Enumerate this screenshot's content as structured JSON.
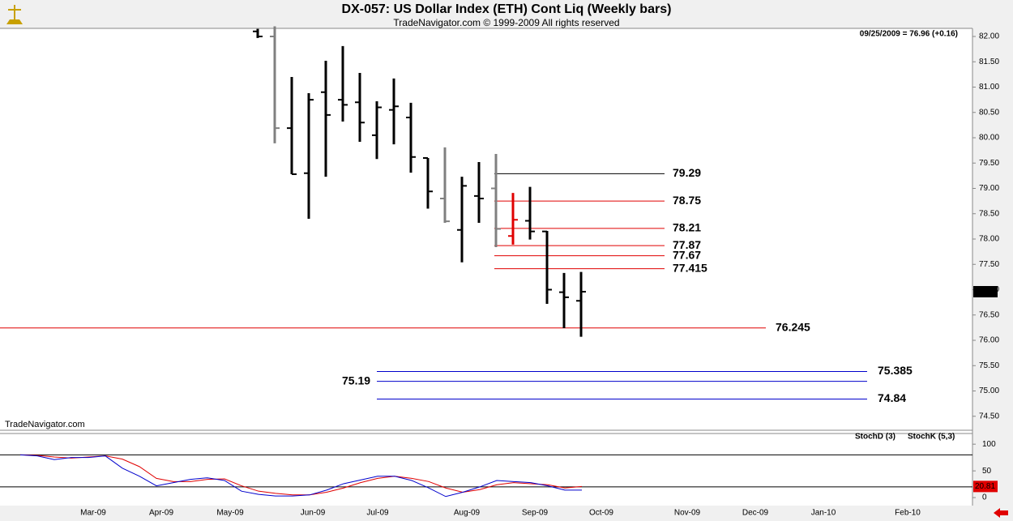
{
  "chart_data": [
    {
      "type": "ohlc",
      "title": "DX-057:  US Dollar Index (ETH) Cont Liq  (Weekly bars)",
      "subtitle": "TradeNavigator.com © 1999-2009 All rights reserved",
      "info": "09/25/2009 = 76.96 (+0.16)",
      "watermark": "TradeNavigator.com",
      "open": [
        82.1,
        82.0,
        80.19,
        79.3,
        80.9,
        80.75,
        80.7,
        80.05,
        80.55,
        80.4,
        79.6,
        78.8,
        78.18,
        78.85,
        79.0,
        78.06,
        78.36,
        78.15,
        76.95,
        76.78
      ],
      "high": [
        82.15,
        82.2,
        81.2,
        80.88,
        81.52,
        81.81,
        81.28,
        80.72,
        81.17,
        80.69,
        79.6,
        79.81,
        79.23,
        79.52,
        79.68,
        78.91,
        79.03,
        78.16,
        77.33,
        77.35
      ],
      "low": [
        81.97,
        79.89,
        79.28,
        78.4,
        79.23,
        80.32,
        79.92,
        79.58,
        79.87,
        79.31,
        78.6,
        78.32,
        77.54,
        78.32,
        77.84,
        77.89,
        77.99,
        76.72,
        76.24,
        76.07
      ],
      "close": [
        82.0,
        80.19,
        79.28,
        80.75,
        80.45,
        80.65,
        80.3,
        80.6,
        80.62,
        79.62,
        78.94,
        78.35,
        79.05,
        78.8,
        78.2,
        78.38,
        78.15,
        77.0,
        76.85,
        76.96
      ],
      "colors": [
        "#000000",
        "#808080",
        "#000000",
        "#000000",
        "#000000",
        "#000000",
        "#000000",
        "#000000",
        "#000000",
        "#000000",
        "#000000",
        "#808080",
        "#000000",
        "#000000",
        "#808080",
        "#e00000",
        "#000000",
        "#000000",
        "#000000",
        "#000000"
      ],
      "levels": [
        79.29,
        78.75,
        78.21,
        77.87,
        77.67,
        77.415,
        76.245,
        75.385,
        75.19,
        74.84
      ],
      "level_colors": [
        "#000000",
        "#e00000",
        "#e00000",
        "#e00000",
        "#e00000",
        "#e00000",
        "#e00000",
        "#0000cc",
        "#0000cc",
        "#0000cc"
      ],
      "ylim": [
        74.24,
        82.16
      ],
      "yticks": [
        {
          "value": 82,
          "label": "82.00"
        },
        {
          "value": 81.5,
          "label": "81.50"
        },
        {
          "value": 81,
          "label": "81.00"
        },
        {
          "value": 80.5,
          "label": "80.50"
        },
        {
          "value": 80,
          "label": "80.00"
        },
        {
          "value": 79.5,
          "label": "79.50"
        },
        {
          "value": 79,
          "label": "79.00"
        },
        {
          "value": 78.5,
          "label": "78.50"
        },
        {
          "value": 78,
          "label": "78.00"
        },
        {
          "value": 77.5,
          "label": "77.50"
        },
        {
          "value": 77,
          "label": "77.00"
        },
        {
          "value": 76.5,
          "label": "76.50"
        },
        {
          "value": 76,
          "label": "76.00"
        },
        {
          "value": 75.5,
          "label": "75.50"
        },
        {
          "value": 75,
          "label": "75.00"
        },
        {
          "value": 74.5,
          "label": "74.50"
        }
      ],
      "x_labels": [
        "Mar-09",
        "Apr-09",
        "May-09",
        "Jun-09",
        "Jul-09",
        "Aug-09",
        "Sep-09",
        "Oct-09",
        "Nov-09",
        "Dec-09",
        "Jan-10",
        "Feb-10"
      ]
    },
    {
      "type": "line",
      "series": [
        {
          "name": "StochD (3)",
          "color": "#e00000",
          "values": [
            80,
            79,
            76,
            74,
            76,
            78,
            72,
            58,
            36,
            30,
            30,
            34,
            35,
            22,
            12,
            8,
            5,
            5,
            10,
            18,
            28,
            36,
            40,
            36,
            30,
            18,
            10,
            15,
            24,
            28,
            26,
            24,
            18,
            20.81
          ]
        },
        {
          "name": "StochK (5,3)",
          "color": "#0000cc",
          "values": [
            80,
            78,
            71,
            75,
            75,
            78,
            55,
            40,
            22,
            28,
            34,
            37,
            32,
            12,
            6,
            3,
            3,
            5,
            14,
            26,
            33,
            40,
            40,
            32,
            18,
            2,
            10,
            20,
            32,
            30,
            28,
            22,
            14,
            14
          ]
        }
      ],
      "ylim": [
        -12,
        120
      ],
      "yticks": [
        0,
        50,
        100
      ],
      "levels": [
        80,
        20
      ]
    }
  ]
}
